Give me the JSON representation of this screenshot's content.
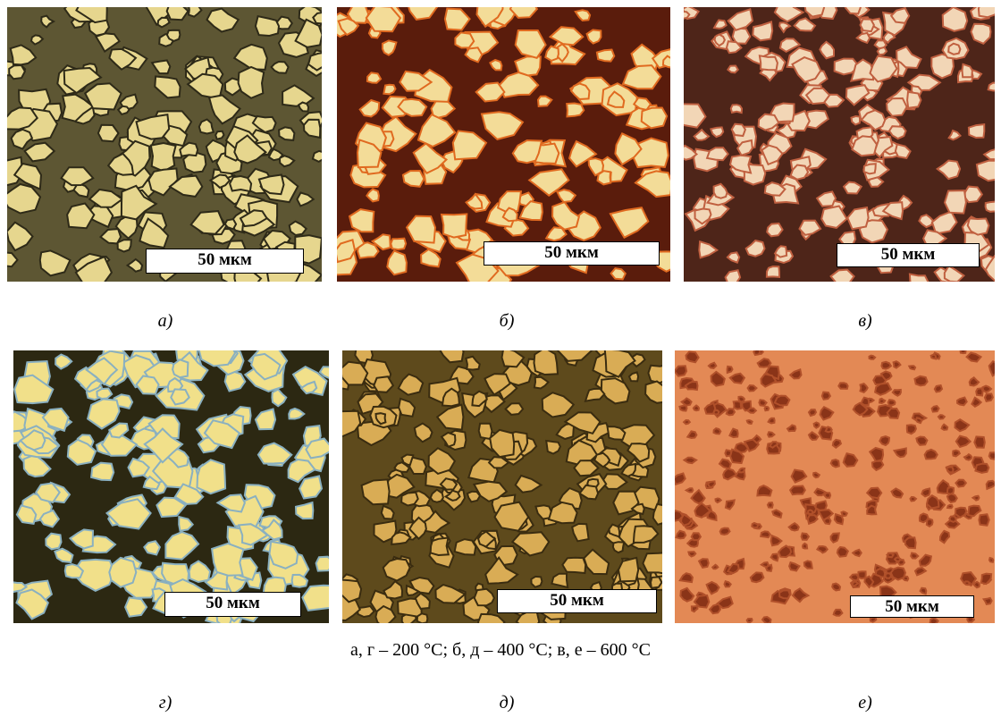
{
  "panels": [
    {
      "label": "а)",
      "scale_label": "50 мкм"
    },
    {
      "label": "б)",
      "scale_label": "50 мкм"
    },
    {
      "label": "в)",
      "scale_label": "50 мкм"
    },
    {
      "label": "г)",
      "scale_label": "50 мкм"
    },
    {
      "label": "д)",
      "scale_label": "50 мкм"
    },
    {
      "label": "е)",
      "scale_label": "50 мкм"
    }
  ],
  "caption": "а, г – 200 °С; б, д – 400 °С; в, е – 600 °С"
}
